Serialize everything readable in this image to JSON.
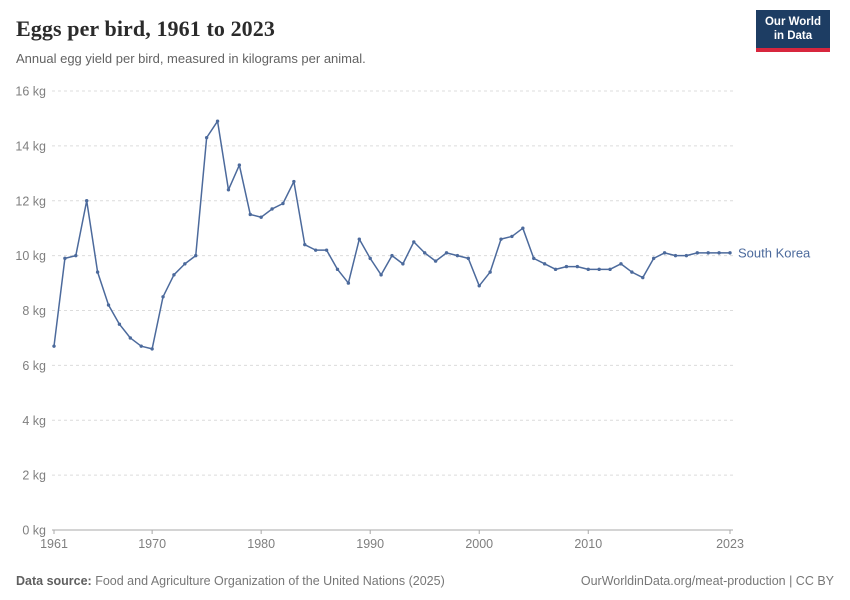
{
  "header": {
    "logo_line1": "Our World",
    "logo_line2": "in Data"
  },
  "footer": {
    "source_label": "Data source:",
    "source_text": "Food and Agriculture Organization of the United Nations (2025)",
    "link_text": "OurWorldinData.org/meat-production | CC BY"
  },
  "chart_data": {
    "type": "line",
    "title": "Eggs per bird, 1961 to 2023",
    "subtitle": "Annual egg yield per bird, measured in kilograms per animal.",
    "xlabel": "",
    "ylabel": "",
    "ylim": [
      0,
      16
    ],
    "x_range": [
      1961,
      2023
    ],
    "yticks": [
      0,
      2,
      4,
      6,
      8,
      10,
      12,
      14,
      16
    ],
    "ytick_format": "{} kg",
    "xticks": [
      1961,
      1970,
      1980,
      1990,
      2000,
      2010,
      2023
    ],
    "grid": "dashed-horizontal",
    "legend_position": "end-of-line",
    "axis_color": "#a8a8a8",
    "grid_color": "#dcdcdc",
    "tick_label_color": "#7f7f7f",
    "series": [
      {
        "name": "South Korea",
        "color": "#4C6A9C",
        "x": [
          1961,
          1962,
          1963,
          1964,
          1965,
          1966,
          1967,
          1968,
          1969,
          1970,
          1971,
          1972,
          1973,
          1974,
          1975,
          1976,
          1977,
          1978,
          1979,
          1980,
          1981,
          1982,
          1983,
          1984,
          1985,
          1986,
          1987,
          1988,
          1989,
          1990,
          1991,
          1992,
          1993,
          1994,
          1995,
          1996,
          1997,
          1998,
          1999,
          2000,
          2001,
          2002,
          2003,
          2004,
          2005,
          2006,
          2007,
          2008,
          2009,
          2010,
          2011,
          2012,
          2013,
          2014,
          2015,
          2016,
          2017,
          2018,
          2019,
          2020,
          2021,
          2022,
          2023
        ],
        "values": [
          6.7,
          9.9,
          10.0,
          12.0,
          9.4,
          8.2,
          7.5,
          7.0,
          6.7,
          6.6,
          8.5,
          9.3,
          9.7,
          10.0,
          14.3,
          14.9,
          12.4,
          13.3,
          11.5,
          11.4,
          11.7,
          11.9,
          12.7,
          10.4,
          10.2,
          10.2,
          9.5,
          9.0,
          10.6,
          9.9,
          9.3,
          10.0,
          9.7,
          10.5,
          10.1,
          9.8,
          10.1,
          10.0,
          9.9,
          8.9,
          9.4,
          10.6,
          10.7,
          11.0,
          9.9,
          9.7,
          9.5,
          9.6,
          9.6,
          9.5,
          9.5,
          9.5,
          9.7,
          9.4,
          9.2,
          9.9,
          10.1,
          10.0,
          10.0,
          10.1,
          10.1,
          10.1,
          10.1
        ]
      }
    ]
  }
}
